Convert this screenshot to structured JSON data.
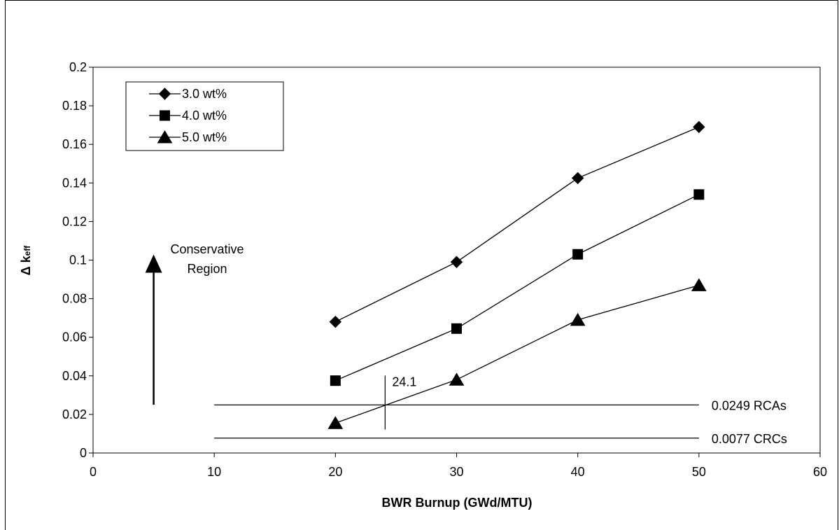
{
  "chart_data": {
    "type": "line",
    "xlabel": "BWR Burnup (GWd/MTU)",
    "ylabel_symbol": "Δ",
    "ylabel_main": "k",
    "ylabel_sub": "eff",
    "xlim": [
      0,
      60
    ],
    "ylim": [
      0,
      0.2
    ],
    "x_ticks": [
      0,
      10,
      20,
      30,
      40,
      50,
      60
    ],
    "y_ticks": [
      0,
      0.02,
      0.04,
      0.06,
      0.08,
      0.1,
      0.12,
      0.14,
      0.16,
      0.18,
      0.2
    ],
    "x_tick_labels": [
      "0",
      "10",
      "20",
      "30",
      "40",
      "50",
      "60"
    ],
    "y_tick_labels": [
      "0",
      "0.02",
      "0.04",
      "0.06",
      "0.08",
      "0.1",
      "0.12",
      "0.14",
      "0.16",
      "0.18",
      "0.2"
    ],
    "grid": false,
    "legend_position": "top-left",
    "series": [
      {
        "name": "3.0 wt%",
        "marker": "diamond",
        "x": [
          20,
          30,
          40,
          50
        ],
        "y": [
          0.068,
          0.099,
          0.1425,
          0.169
        ]
      },
      {
        "name": "4.0 wt%",
        "marker": "square",
        "x": [
          20,
          30,
          40,
          50
        ],
        "y": [
          0.0375,
          0.0645,
          0.103,
          0.134
        ]
      },
      {
        "name": "5.0 wt%",
        "marker": "triangle",
        "x": [
          20,
          30,
          40,
          50
        ],
        "y": [
          0.0155,
          0.038,
          0.069,
          0.087
        ]
      }
    ],
    "reference_lines": [
      {
        "y": 0.0249,
        "x_start": 10,
        "x_end": 50,
        "label": "0.0249 RCAs"
      },
      {
        "y": 0.0077,
        "x_start": 10,
        "x_end": 50,
        "label": "0.0077 CRCs"
      }
    ],
    "intersection": {
      "x": 24.1,
      "y": 0.0249,
      "label": "24.1"
    },
    "region_annotation": {
      "line1": "Conservative",
      "line2": "Region",
      "x": 5,
      "y_from": 0.025,
      "y_to": 0.1
    }
  }
}
